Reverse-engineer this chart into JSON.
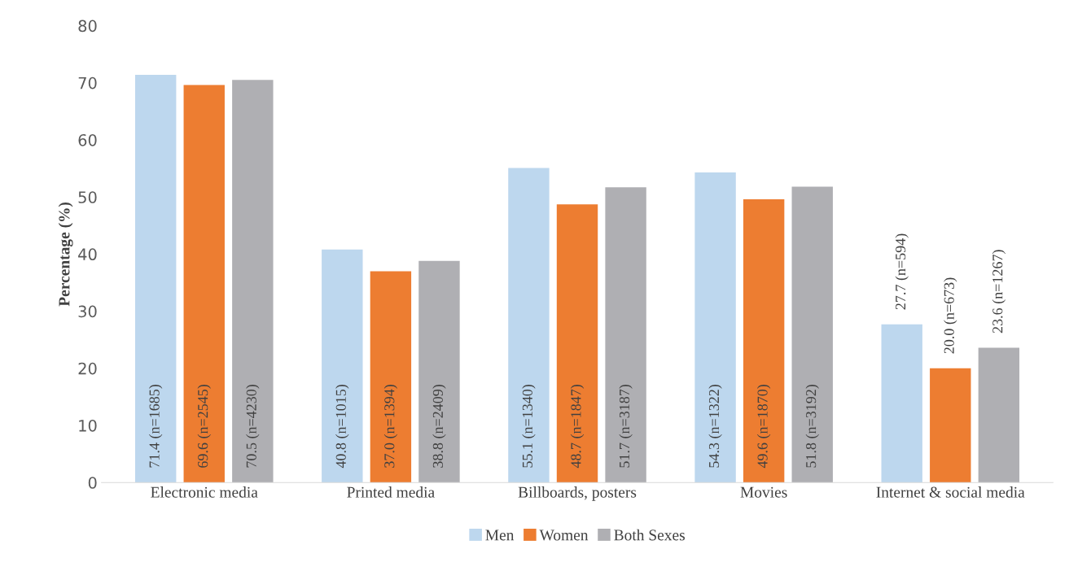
{
  "chart_data": {
    "type": "bar",
    "ylabel": "Percentage (%)",
    "categories": [
      "Electronic media",
      "Printed media",
      "Billboards, posters",
      "Movies",
      "Internet & social media"
    ],
    "series": [
      {
        "name": "Men",
        "color": "#bdd7ee",
        "values": [
          71.4,
          40.8,
          55.1,
          54.3,
          27.7
        ],
        "value_labels": [
          "71.4 (n=1685)",
          "40.8 (n=1015)",
          "55.1 (n=1340)",
          "54.3 (n=1322)",
          "27.7 (n=594)"
        ]
      },
      {
        "name": "Women",
        "color": "#ed7d31",
        "values": [
          69.6,
          37.0,
          48.7,
          49.6,
          20.0
        ],
        "value_labels": [
          "69.6 (n=2545)",
          "37.0 (n=1394)",
          "48.7 (n=1847)",
          "49.6 (n=1870)",
          "20.0 (n=673)"
        ]
      },
      {
        "name": "Both Sexes",
        "color": "#afafb3",
        "values": [
          70.5,
          38.8,
          51.7,
          51.8,
          23.6
        ],
        "value_labels": [
          "70.5 (n=4230)",
          "38.8 (n=2409)",
          "51.7 (n=3187)",
          "51.8 (n=3192)",
          "23.6 (n=1267)"
        ]
      }
    ],
    "ylim": [
      0,
      80
    ],
    "yticks": [
      0,
      10,
      20,
      30,
      40,
      50,
      60,
      70,
      80
    ],
    "grid": false,
    "legend": "bottom"
  }
}
